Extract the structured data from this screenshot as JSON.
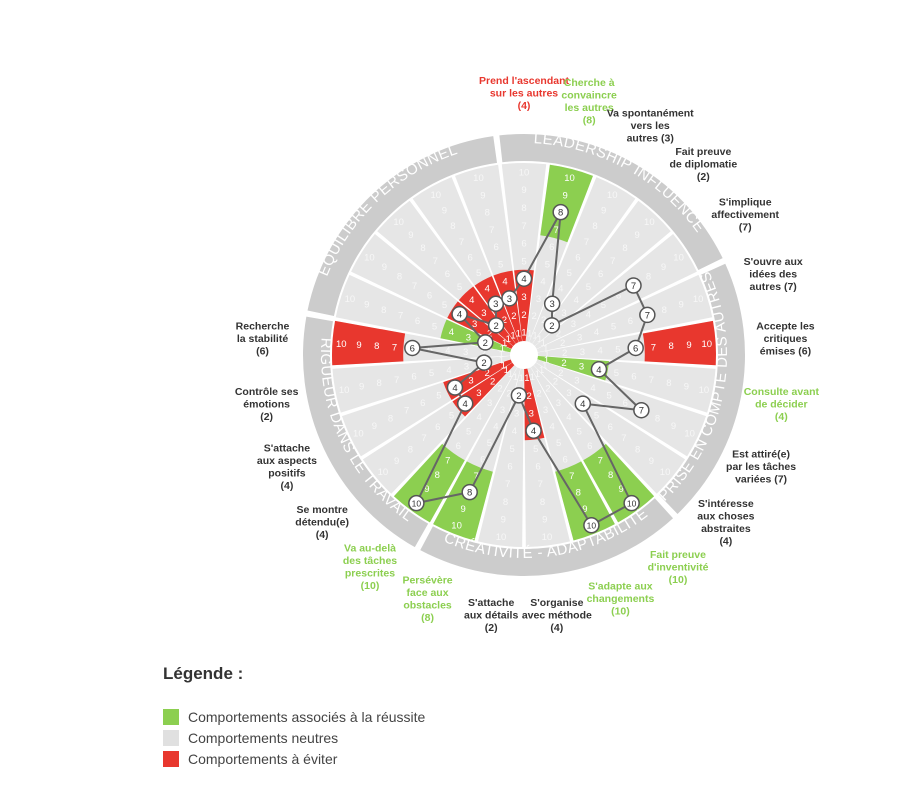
{
  "chart_data": {
    "type": "radar",
    "title": "",
    "scale": {
      "min": 1,
      "max": 10
    },
    "colors": {
      "success": "#8ccf50",
      "neutral": "#e6e6e6",
      "avoid": "#e8372e",
      "ring": "#cccccc",
      "line": "#666666",
      "label_default": "#333333"
    },
    "categories": [
      {
        "name": "LEADERSHIP INFLUENCE",
        "dims": [
          1,
          2,
          3,
          4,
          5
        ]
      },
      {
        "name": "PRISE EN COMPTE DES AUTRES",
        "dims": [
          6,
          7,
          8,
          9,
          10
        ]
      },
      {
        "name": "CRÉATIVITÉ - ADAPTABILITÉ",
        "dims": [
          11,
          12,
          13,
          14,
          15
        ]
      },
      {
        "name": "RIGUEUR DANS LE TRAVAIL",
        "dims": [
          16,
          17,
          18,
          19,
          20
        ]
      },
      {
        "name": "ÉQUILIBRE PERSONNEL",
        "dims": [
          21,
          22,
          23,
          24,
          25
        ]
      }
    ],
    "dimensions": [
      {
        "label": [
          "Prend l'ascendant",
          "sur les autres"
        ],
        "value": 4,
        "zone": "avoid",
        "zone_range": [
          1,
          4
        ]
      },
      {
        "label": [
          "Cherche à",
          "convaincre",
          "les autres"
        ],
        "value": 8,
        "zone": "success",
        "zone_range": [
          7,
          10
        ]
      },
      {
        "label": [
          "Va spontanément",
          "vers les",
          "autres"
        ],
        "value": 3,
        "zone": "none",
        "zone_range": null
      },
      {
        "label": [
          "Fait preuve",
          "de diplomatie"
        ],
        "value": 2,
        "zone": "none",
        "zone_range": null
      },
      {
        "label": [
          "S'implique",
          "affectivement"
        ],
        "value": 7,
        "zone": "none",
        "zone_range": null
      },
      {
        "label": [
          "S'ouvre aux",
          "idées des",
          "autres"
        ],
        "value": 7,
        "zone": "none",
        "zone_range": null
      },
      {
        "label": [
          "Accepte les",
          "critiques",
          "émises"
        ],
        "value": 6,
        "zone": "avoid",
        "zone_range": [
          7,
          10
        ]
      },
      {
        "label": [
          "Consulte avant",
          "de décider"
        ],
        "value": 4,
        "zone": "success",
        "zone_range": [
          1,
          4
        ]
      },
      {
        "label": [
          "Est attiré(e)",
          "par les tâches",
          "variées"
        ],
        "value": 7,
        "zone": "none",
        "zone_range": null
      },
      {
        "label": [
          "S'intéresse",
          "aux choses",
          "abstraites"
        ],
        "value": 4,
        "zone": "none",
        "zone_range": null
      },
      {
        "label": [
          "Fait preuve",
          "d'inventivité"
        ],
        "value": 10,
        "zone": "success",
        "zone_range": [
          7,
          10
        ]
      },
      {
        "label": [
          "S'adapte aux",
          "changements"
        ],
        "value": 10,
        "zone": "success",
        "zone_range": [
          7,
          10
        ]
      },
      {
        "label": [
          "S'organise",
          "avec méthode"
        ],
        "value": 4,
        "zone": "avoid",
        "zone_range": [
          1,
          4
        ]
      },
      {
        "label": [
          "S'attache",
          "aux détails"
        ],
        "value": 2,
        "zone": "none",
        "zone_range": null
      },
      {
        "label": [
          "Persévère",
          "face aux",
          "obstacles"
        ],
        "value": 8,
        "zone": "success",
        "zone_range": [
          7,
          10
        ]
      },
      {
        "label": [
          "Va au-delà",
          "des tâches",
          "prescrites"
        ],
        "value": 10,
        "zone": "success",
        "zone_range": [
          7,
          10
        ]
      },
      {
        "label": [
          "Se montre",
          "détendu(e)"
        ],
        "value": 4,
        "zone": "avoid",
        "zone_range": [
          1,
          4
        ]
      },
      {
        "label": [
          "S'attache",
          "aux aspects",
          "positifs"
        ],
        "value": 4,
        "zone": "avoid",
        "zone_range": [
          1,
          4
        ]
      },
      {
        "label": [
          "Contrôle ses",
          "émotions"
        ],
        "value": 2,
        "zone": "none",
        "zone_range": null
      },
      {
        "label": [
          "Recherche",
          "la stabilité"
        ],
        "value": 6,
        "zone": "avoid",
        "zone_range": [
          7,
          10
        ]
      },
      {
        "label": [],
        "value": 2,
        "zone": "success",
        "zone_range": [
          1,
          4
        ]
      },
      {
        "label": [],
        "value": 4,
        "zone": "avoid",
        "zone_range": [
          1,
          4
        ]
      },
      {
        "label": [],
        "value": 2,
        "zone": "avoid",
        "zone_range": [
          1,
          4
        ]
      },
      {
        "label": [],
        "value": 3,
        "zone": "avoid",
        "zone_range": [
          1,
          4
        ]
      },
      {
        "label": [],
        "value": 3,
        "zone": "avoid",
        "zone_range": [
          1,
          4
        ]
      }
    ],
    "visible_labels": [
      {
        "text": [
          "Prend l'ascendant",
          "sur les autres",
          "(4)"
        ],
        "color": "avoid"
      },
      {
        "text": [
          "Cherche à",
          "convaincre",
          "les autres",
          "(8)"
        ],
        "color": "success"
      },
      {
        "text": [
          "Va spontanément",
          "vers les",
          "autres (3)"
        ],
        "color": "default"
      },
      {
        "text": [
          "Fait preuve",
          "de diplomatie",
          "(2)"
        ],
        "color": "default"
      },
      {
        "text": [
          "S'implique",
          "affectivement",
          "(7)"
        ],
        "color": "default"
      },
      {
        "text": [
          "S'ouvre aux",
          "idées des",
          "autres (7)"
        ],
        "color": "default"
      },
      {
        "text": [
          "Accepte les",
          "critiques",
          "émises (6)"
        ],
        "color": "default"
      },
      {
        "text": [
          "Consulte avant",
          "de décider",
          "(4)"
        ],
        "color": "success"
      },
      {
        "text": [
          "Est attiré(e)",
          "par les tâches",
          "variées (7)"
        ],
        "color": "default"
      },
      {
        "text": [
          "S'intéresse",
          "aux choses",
          "abstraites",
          "(4)"
        ],
        "color": "default"
      },
      {
        "text": [
          "Fait preuve",
          "d'inventivité",
          "(10)"
        ],
        "color": "success"
      },
      {
        "text": [
          "S'adapte aux",
          "changements",
          "(10)"
        ],
        "color": "success"
      },
      {
        "text": [
          "S'organise",
          "avec méthode",
          "(4)"
        ],
        "color": "default"
      },
      {
        "text": [
          "S'attache",
          "aux détails",
          "(2)"
        ],
        "color": "default"
      },
      {
        "text": [
          "Persévère",
          "face aux",
          "obstacles",
          "(8)"
        ],
        "color": "success"
      },
      {
        "text": [
          "Va au-delà",
          "des tâches",
          "prescrites",
          "(10)"
        ],
        "color": "success"
      },
      {
        "text": [
          "Se montre",
          "détendu(e)",
          "(4)"
        ],
        "color": "default"
      },
      {
        "text": [
          "S'attache",
          "aux aspects",
          "positifs",
          "(4)"
        ],
        "color": "default"
      },
      {
        "text": [
          "Contrôle ses",
          "émotions",
          "(2)"
        ],
        "color": "default"
      },
      {
        "text": [
          "Recherche",
          "la stabilité",
          "(6)"
        ],
        "color": "default"
      }
    ]
  },
  "legend": {
    "title": "Légende :",
    "items": [
      {
        "label": "Comportements associés à la réussite",
        "color": "#8ccf50"
      },
      {
        "label": "Comportements neutres",
        "color": "#e0e0e0"
      },
      {
        "label": "Comportements à éviter",
        "color": "#e8372e"
      }
    ]
  }
}
